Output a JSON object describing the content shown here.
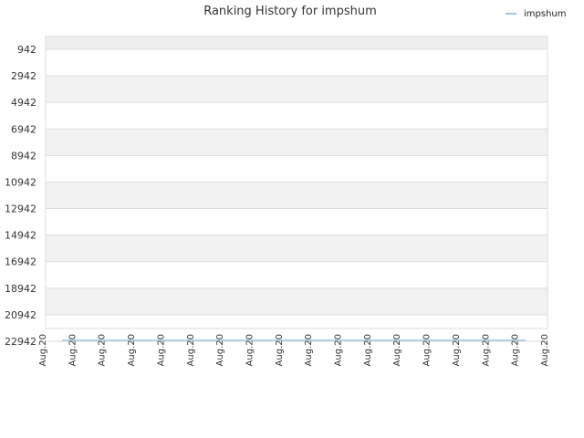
{
  "chart_data": {
    "type": "line",
    "title": "Ranking History for impshum",
    "legend": {
      "placement": "top-right",
      "entries": [
        "impshum"
      ]
    },
    "colors": {
      "series": "#9ecae1",
      "plot_bg": "#ffffff",
      "band": "#f2f2f2",
      "grid": "#dddddd",
      "title": "#333333",
      "tick": "#333333"
    },
    "y_axis": {
      "inverted": true,
      "range": [
        942,
        22942
      ],
      "ticks": [
        942,
        2942,
        4942,
        6942,
        8942,
        10942,
        12942,
        14942,
        16942,
        18942,
        20942,
        22942
      ]
    },
    "x_axis": {
      "ticks": [
        "Aug.20",
        "Aug.20",
        "Aug.20",
        "Aug.20",
        "Aug.20",
        "Aug.20",
        "Aug.20",
        "Aug.20",
        "Aug.20",
        "Aug.20",
        "Aug.20",
        "Aug.20",
        "Aug.20",
        "Aug.20",
        "Aug.20",
        "Aug.20",
        "Aug.20",
        "Aug.20"
      ]
    },
    "series": [
      {
        "name": "impshum",
        "values": [
          22942,
          22942
        ]
      }
    ]
  }
}
